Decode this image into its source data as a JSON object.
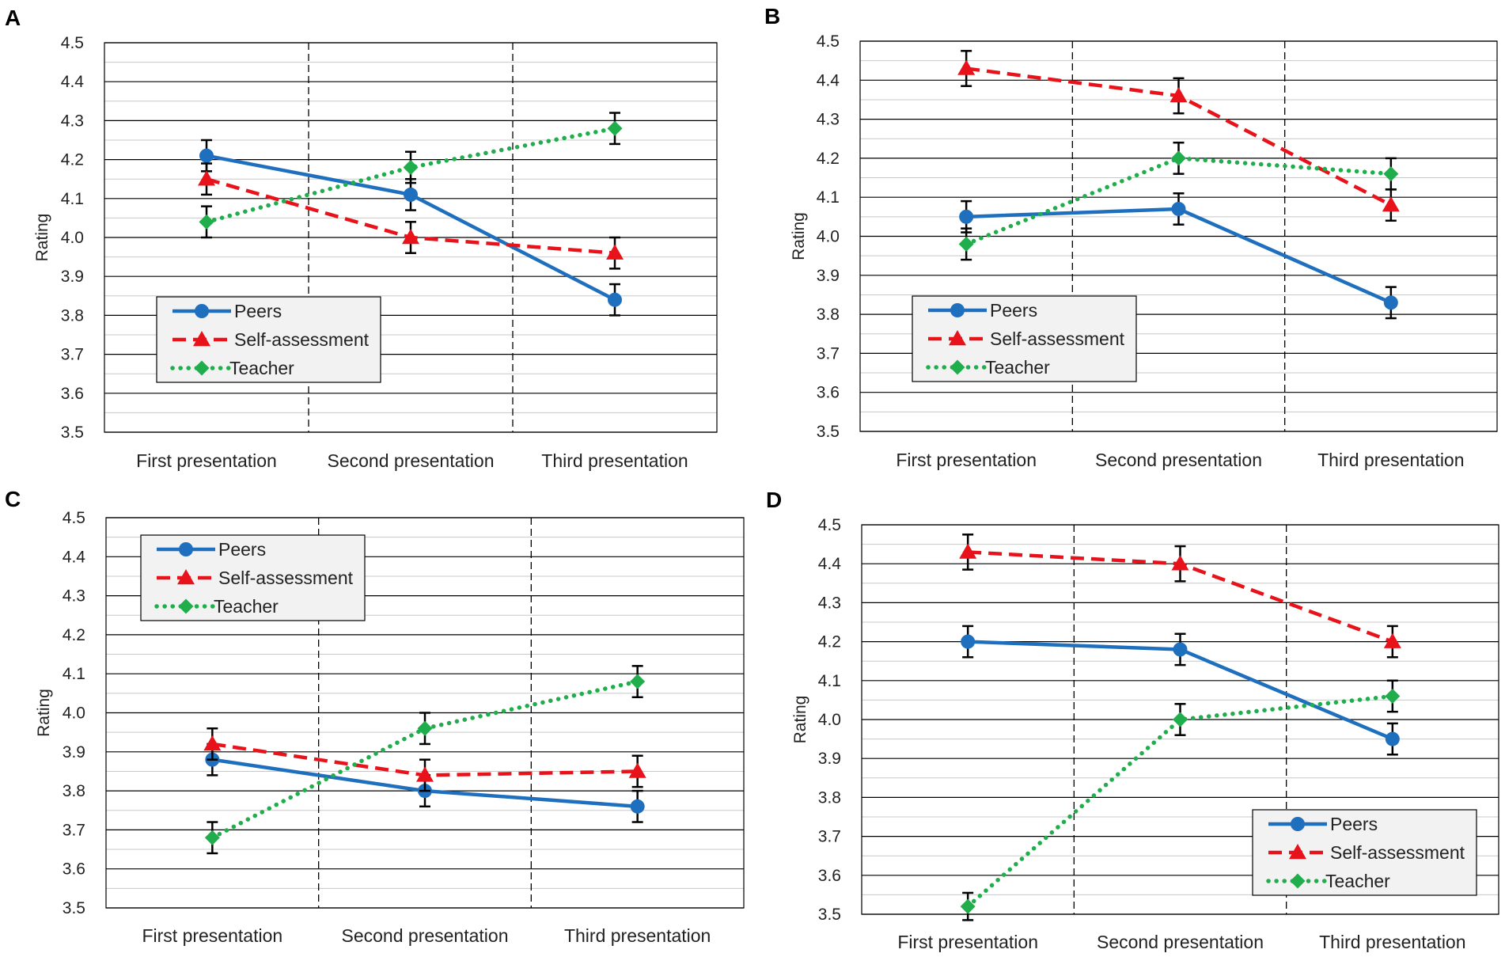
{
  "colors": {
    "peers": "#1f6fbf",
    "self": "#e8121b",
    "teacher": "#1fae4b",
    "grid_major": "#000000",
    "grid_minor": "#c8c8c8",
    "legend_bg": "#f2f2f2"
  },
  "chart_data": [
    {
      "panel": "A",
      "type": "line",
      "categories": [
        "First presentation",
        "Second presentation",
        "Third presentation"
      ],
      "ylabel": "Rating",
      "ylim": [
        3.5,
        4.5
      ],
      "yticks": [
        "3.5",
        "3.6",
        "3.7",
        "3.8",
        "3.9",
        "4.0",
        "4.1",
        "4.2",
        "4.3",
        "4.4",
        "4.5"
      ],
      "legend_position": "bottom-left",
      "series": [
        {
          "name": "Peers",
          "style": "solid",
          "marker": "circle",
          "values": [
            4.21,
            4.11,
            3.84
          ],
          "errors": [
            0.04,
            0.04,
            0.04
          ]
        },
        {
          "name": "Self-assessment",
          "style": "dashed",
          "marker": "triangle",
          "values": [
            4.15,
            4.0,
            3.96
          ],
          "errors": [
            0.04,
            0.04,
            0.04
          ]
        },
        {
          "name": "Teacher",
          "style": "dotted",
          "marker": "diamond",
          "values": [
            4.04,
            4.18,
            4.28
          ],
          "errors": [
            0.04,
            0.04,
            0.04
          ]
        }
      ]
    },
    {
      "panel": "B",
      "type": "line",
      "categories": [
        "First presentation",
        "Second presentation",
        "Third presentation"
      ],
      "ylabel": "Rating",
      "ylim": [
        3.5,
        4.5
      ],
      "yticks": [
        "3.5",
        "3.6",
        "3.7",
        "3.8",
        "3.9",
        "4.0",
        "4.1",
        "4.2",
        "4.3",
        "4.4",
        "4.5"
      ],
      "legend_position": "bottom-left",
      "series": [
        {
          "name": "Peers",
          "style": "solid",
          "marker": "circle",
          "values": [
            4.05,
            4.07,
            3.83
          ],
          "errors": [
            0.04,
            0.04,
            0.04
          ]
        },
        {
          "name": "Self-assessment",
          "style": "dashed",
          "marker": "triangle",
          "values": [
            4.43,
            4.36,
            4.08
          ],
          "errors": [
            0.045,
            0.045,
            0.04
          ]
        },
        {
          "name": "Teacher",
          "style": "dotted",
          "marker": "diamond",
          "values": [
            3.98,
            4.2,
            4.16
          ],
          "errors": [
            0.04,
            0.04,
            0.04
          ]
        }
      ]
    },
    {
      "panel": "C",
      "type": "line",
      "categories": [
        "First presentation",
        "Second presentation",
        "Third presentation"
      ],
      "ylabel": "Rating",
      "ylim": [
        3.5,
        4.5
      ],
      "yticks": [
        "3.5",
        "3.6",
        "3.7",
        "3.8",
        "3.9",
        "4.0",
        "4.1",
        "4.2",
        "4.3",
        "4.4",
        "4.5"
      ],
      "legend_position": "top-left",
      "series": [
        {
          "name": "Peers",
          "style": "solid",
          "marker": "circle",
          "values": [
            3.88,
            3.8,
            3.76
          ],
          "errors": [
            0.04,
            0.04,
            0.04
          ]
        },
        {
          "name": "Self-assessment",
          "style": "dashed",
          "marker": "triangle",
          "values": [
            3.92,
            3.84,
            3.85
          ],
          "errors": [
            0.04,
            0.04,
            0.04
          ]
        },
        {
          "name": "Teacher",
          "style": "dotted",
          "marker": "diamond",
          "values": [
            3.68,
            3.96,
            4.08
          ],
          "errors": [
            0.04,
            0.04,
            0.04
          ]
        }
      ]
    },
    {
      "panel": "D",
      "type": "line",
      "categories": [
        "First presentation",
        "Second presentation",
        "Third presentation"
      ],
      "ylabel": "Rating",
      "ylim": [
        3.5,
        4.5
      ],
      "yticks": [
        "3.5",
        "3.6",
        "3.7",
        "3.8",
        "3.9",
        "4.0",
        "4.1",
        "4.2",
        "4.3",
        "4.4",
        "4.5"
      ],
      "legend_position": "bottom-right",
      "series": [
        {
          "name": "Peers",
          "style": "solid",
          "marker": "circle",
          "values": [
            4.2,
            4.18,
            3.95
          ],
          "errors": [
            0.04,
            0.04,
            0.04
          ]
        },
        {
          "name": "Self-assessment",
          "style": "dashed",
          "marker": "triangle",
          "values": [
            4.43,
            4.4,
            4.2
          ],
          "errors": [
            0.045,
            0.045,
            0.04
          ]
        },
        {
          "name": "Teacher",
          "style": "dotted",
          "marker": "diamond",
          "values": [
            3.52,
            4.0,
            4.06
          ],
          "errors": [
            0.035,
            0.04,
            0.04
          ]
        }
      ]
    }
  ]
}
